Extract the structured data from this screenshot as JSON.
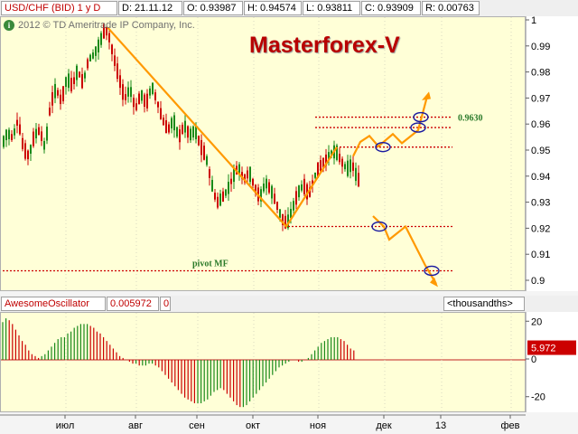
{
  "header": {
    "symbol": "USD/CHF (BID) 1 y D",
    "date": "D: 21.11.12",
    "open": "O: 0.93987",
    "high": "H: 0.94574",
    "low": "L: 0.93811",
    "close": "C: 0.93909",
    "range": "R: 0.00763"
  },
  "copyright": "2012 © TD Ameritrade IP Company, Inc.",
  "brand": "Masterforex-V",
  "oscillator_header": {
    "name": "AwesomeOscillator",
    "value": "0.005972",
    "param": "0",
    "units": "<thousandths>"
  },
  "oscillator_value_badge": "5.972",
  "colors": {
    "up": "#1a8a1a",
    "down": "#cc0000",
    "trend": "#ff9900",
    "level": "#cc0000",
    "ellipse": "#1a1aa0",
    "background": "#ffffd7"
  },
  "chart_data": [
    {
      "type": "candlestick",
      "title": "USD/CHF (BID) 1 y D",
      "months": [
        "июл",
        "авг",
        "сен",
        "окт",
        "ноя",
        "дек",
        "13",
        "фев"
      ],
      "y_ticks": [
        "1",
        "0.99",
        "0.98",
        "0.97",
        "0.96",
        "0.95",
        "0.94",
        "0.93",
        "0.92",
        "0.91",
        "0.9"
      ],
      "ylim": [
        0.9,
        1.0
      ],
      "path": [
        [
          0,
          0.952
        ],
        [
          6,
          0.957
        ],
        [
          12,
          0.955
        ],
        [
          18,
          0.962
        ],
        [
          24,
          0.951
        ],
        [
          30,
          0.948
        ],
        [
          36,
          0.956
        ],
        [
          42,
          0.958
        ],
        [
          48,
          0.951
        ],
        [
          54,
          0.968
        ],
        [
          60,
          0.974
        ],
        [
          66,
          0.969
        ],
        [
          72,
          0.978
        ],
        [
          78,
          0.975
        ],
        [
          84,
          0.981
        ],
        [
          90,
          0.976
        ],
        [
          96,
          0.985
        ],
        [
          102,
          0.987
        ],
        [
          108,
          0.991
        ],
        [
          114,
          0.997
        ],
        [
          118,
          0.995
        ],
        [
          124,
          0.986
        ],
        [
          130,
          0.978
        ],
        [
          136,
          0.97
        ],
        [
          142,
          0.974
        ],
        [
          148,
          0.966
        ],
        [
          154,
          0.972
        ],
        [
          160,
          0.968
        ],
        [
          166,
          0.975
        ],
        [
          172,
          0.969
        ],
        [
          178,
          0.962
        ],
        [
          184,
          0.958
        ],
        [
          190,
          0.962
        ],
        [
          196,
          0.955
        ],
        [
          202,
          0.96
        ],
        [
          208,
          0.956
        ],
        [
          214,
          0.958
        ],
        [
          220,
          0.952
        ],
        [
          226,
          0.948
        ],
        [
          232,
          0.938
        ],
        [
          238,
          0.93
        ],
        [
          244,
          0.932
        ],
        [
          250,
          0.935
        ],
        [
          256,
          0.94
        ],
        [
          262,
          0.944
        ],
        [
          268,
          0.939
        ],
        [
          274,
          0.942
        ],
        [
          280,
          0.936
        ],
        [
          286,
          0.932
        ],
        [
          292,
          0.938
        ],
        [
          298,
          0.935
        ],
        [
          304,
          0.93
        ],
        [
          310,
          0.924
        ],
        [
          316,
          0.922
        ],
        [
          322,
          0.928
        ],
        [
          328,
          0.934
        ],
        [
          334,
          0.937
        ],
        [
          340,
          0.933
        ],
        [
          346,
          0.94
        ],
        [
          352,
          0.944
        ],
        [
          358,
          0.946
        ],
        [
          364,
          0.949
        ],
        [
          370,
          0.95
        ],
        [
          376,
          0.946
        ],
        [
          382,
          0.943
        ],
        [
          388,
          0.945
        ],
        [
          394,
          0.939
        ]
      ],
      "annotations": {
        "level_label": "0.9630",
        "pivot_label": "pivot MF"
      }
    },
    {
      "type": "bar",
      "title": "AwesomeOscillator",
      "y_ticks": [
        "20",
        "0",
        "-20"
      ],
      "ylim": [
        -28,
        23
      ],
      "values": [
        20,
        22,
        21,
        19,
        16,
        13,
        10,
        8,
        5,
        3,
        2,
        1,
        2,
        3,
        5,
        7,
        9,
        11,
        12,
        12,
        14,
        15,
        17,
        18,
        19,
        19,
        19,
        18,
        17,
        15,
        14,
        12,
        10,
        8,
        6,
        4,
        2,
        1,
        0,
        -1,
        -2,
        -2,
        -3,
        -3,
        -3,
        -2,
        -2,
        -3,
        -4,
        -6,
        -8,
        -10,
        -12,
        -14,
        -16,
        -18,
        -20,
        -21,
        -22,
        -23,
        -23,
        -23,
        -22,
        -21,
        -19,
        -17,
        -16,
        -15,
        -16,
        -18,
        -20,
        -22,
        -24,
        -25,
        -25,
        -24,
        -22,
        -20,
        -18,
        -16,
        -14,
        -12,
        -10,
        -8,
        -6,
        -4,
        -3,
        -2,
        -1,
        0,
        0,
        -1,
        -1,
        0,
        1,
        3,
        5,
        7,
        9,
        10,
        11,
        12,
        12,
        12,
        11,
        10,
        8,
        6,
        5
      ]
    }
  ]
}
